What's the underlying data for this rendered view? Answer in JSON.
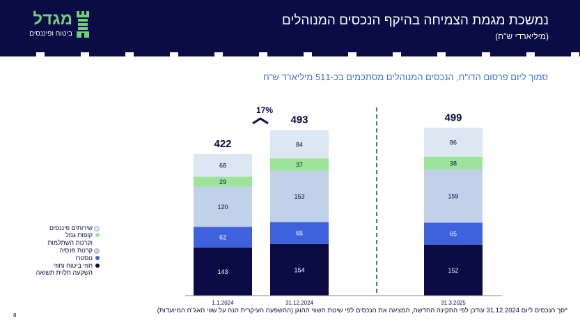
{
  "header": {
    "title": "נמשכת מגמת הצמיחה בהיקף הנכסים המנוהלים",
    "subtitle": "(מיליארדי ש\"ח)",
    "logo": {
      "name": "מגדל",
      "tagline": "ביטוח ופיננסים",
      "icon": "tower-icon"
    }
  },
  "headline": "סמוך ליום פרסום הדו\"ח, הנכסים המנוהלים מסתכמים בכ-511 מיליארד ש\"ח",
  "chart_data": {
    "type": "bar",
    "stacked": true,
    "categories": [
      "1.1.2024",
      "31.12.2024",
      "31.3.2025"
    ],
    "totals": [
      "422",
      "493",
      "499"
    ],
    "series": [
      {
        "name": "חוזי ביטוח וחוזי השקעה תלוית תשואה",
        "values": [
          143,
          154,
          152
        ],
        "color": "#0b0b45"
      },
      {
        "name": "נוסטרו",
        "values": [
          62,
          65,
          65
        ],
        "color": "#3e62de"
      },
      {
        "name": "קרנות פנסיה",
        "values": [
          120,
          153,
          159
        ],
        "color": "#c2d1ea"
      },
      {
        "name": "קופות גמל וקרנות השתלמות",
        "values": [
          29,
          37,
          38
        ],
        "color": "#9be49a"
      },
      {
        "name": "שירותים פיננסים",
        "values": [
          68,
          84,
          86
        ],
        "color": "#dde6f3"
      }
    ],
    "growth_annotation": "17%",
    "ylim": [
      0,
      520
    ],
    "grid": false,
    "legend_position": "left"
  },
  "legend": [
    {
      "label": "שירותים פיננסים",
      "color": "#dde6f3"
    },
    {
      "label": "קופות גמל",
      "color": "#9be49a"
    },
    {
      "label": "וקרנות השתלמות",
      "color": null
    },
    {
      "label": "קרנות פנסיה",
      "color": "#c2d1ea"
    },
    {
      "label": "נוסטרו",
      "color": "#3e62de"
    },
    {
      "label": "חוזי ביטוח וחוזי",
      "color": "#0b0b45"
    },
    {
      "label": "השקעה תלוית תשואה",
      "color": null
    }
  ],
  "footnote": "*סך הנכסים ליום 31.12.2024 עודכן לפי התקינה החדשה, המציגה את הנכסים לפי שיטת השווי ההוגן (ההשפעה העיקרית הנה על שווי האג\"ח המיועדות)",
  "page_number": "8"
}
